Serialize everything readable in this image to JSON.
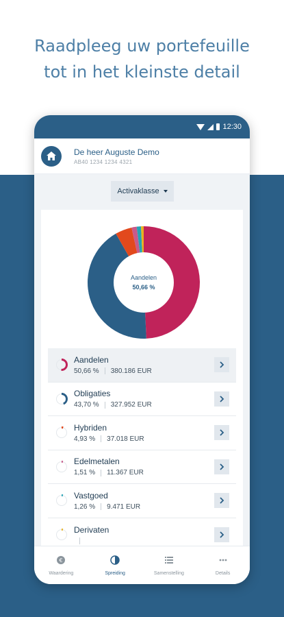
{
  "headline": {
    "line1": "Raadpleeg uw portefeuille",
    "line2": "tot in het kleinste detail"
  },
  "status": {
    "time": "12:30"
  },
  "account": {
    "name": "De heer Auguste Demo",
    "iban": "AB40 1234 1234 4321",
    "icon": "home-icon"
  },
  "filter": {
    "label": "Activaklasse"
  },
  "donut_center": {
    "label": "Aandelen",
    "value": "50,66 %"
  },
  "colors": {
    "aandelen": "#c0235a",
    "obligaties": "#2b5f87",
    "hybriden": "#e2491d",
    "edelmetalen": "#c85a8a",
    "vastgoed": "#26a3b5",
    "derivaten": "#e8b21f",
    "primary": "#2b5f87"
  },
  "chart_data": {
    "type": "pie",
    "categories": [
      "Aandelen",
      "Obligaties",
      "Hybriden",
      "Edelmetalen",
      "Vastgoed",
      "Derivaten"
    ],
    "values": [
      50.66,
      43.7,
      4.93,
      1.51,
      1.26,
      0.8
    ]
  },
  "assets": [
    {
      "name": "Aandelen",
      "pct": "50,66 %",
      "amount": "380.186 EUR",
      "color": "#c0235a",
      "fraction": 0.5066
    },
    {
      "name": "Obligaties",
      "pct": "43,70 %",
      "amount": "327.952 EUR",
      "color": "#2b5f87",
      "fraction": 0.437
    },
    {
      "name": "Hybriden",
      "pct": "4,93 %",
      "amount": "37.018 EUR",
      "color": "#e2491d",
      "fraction": 0.0493
    },
    {
      "name": "Edelmetalen",
      "pct": "1,51 %",
      "amount": "11.367 EUR",
      "color": "#c85a8a",
      "fraction": 0.0151
    },
    {
      "name": "Vastgoed",
      "pct": "1,26 %",
      "amount": "9.471 EUR",
      "color": "#26a3b5",
      "fraction": 0.0126
    },
    {
      "name": "Derivaten",
      "pct": "",
      "amount": "",
      "color": "#e8b21f",
      "fraction": 0.008
    }
  ],
  "tabs": [
    {
      "label": "Waardering",
      "icon": "euro-icon"
    },
    {
      "label": "Spreiding",
      "icon": "pie-icon"
    },
    {
      "label": "Samenstelling",
      "icon": "list-icon"
    },
    {
      "label": "Details",
      "icon": "more-icon"
    }
  ]
}
